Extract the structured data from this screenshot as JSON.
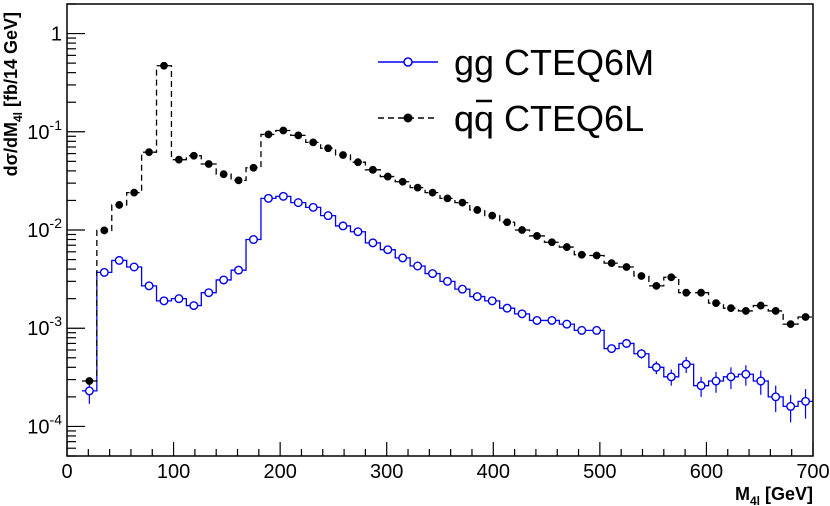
{
  "chart_data": {
    "type": "line",
    "title": "",
    "xlabel": "M_4l [GeV]",
    "ylabel": "dσ/dM_4l [fb/14 GeV]",
    "xlim": [
      0,
      700
    ],
    "ylim": [
      5e-05,
      2
    ],
    "yscale": "log",
    "bin_width": 14,
    "x_ticks": [
      0,
      100,
      200,
      300,
      400,
      500,
      600,
      700
    ],
    "x_tick_labels": [
      "0",
      "100",
      "200",
      "300",
      "400",
      "500",
      "600",
      "700"
    ],
    "y_ticks": [
      0.0001,
      0.001,
      0.01,
      0.1,
      1
    ],
    "legend_position": "top-right",
    "series": [
      {
        "name": "gg CTEQ6M",
        "legend_main": "gg CTEQ6M",
        "color": "#0000ee",
        "marker": "open-circle",
        "line": "solid",
        "x": [
          21,
          35,
          49,
          63,
          77,
          91,
          105,
          119,
          133,
          147,
          161,
          175,
          189,
          203,
          217,
          231,
          245,
          259,
          273,
          287,
          301,
          315,
          329,
          343,
          357,
          371,
          385,
          399,
          413,
          427,
          441,
          455,
          469,
          483,
          497,
          511,
          525,
          539,
          553,
          567,
          581,
          595,
          609,
          623,
          637,
          651,
          665,
          679,
          693
        ],
        "values": [
          0.00023,
          0.0037,
          0.0049,
          0.0042,
          0.0027,
          0.0019,
          0.002,
          0.0017,
          0.0023,
          0.0031,
          0.0039,
          0.008,
          0.021,
          0.022,
          0.019,
          0.017,
          0.014,
          0.011,
          0.0096,
          0.0074,
          0.0063,
          0.0052,
          0.0043,
          0.0036,
          0.003,
          0.0025,
          0.0021,
          0.0019,
          0.0016,
          0.0014,
          0.0012,
          0.0012,
          0.0011,
          0.00095,
          0.00095,
          0.00062,
          0.0007,
          0.00055,
          0.0004,
          0.00032,
          0.00043,
          0.00026,
          0.00029,
          0.00032,
          0.00034,
          0.00029,
          0.0002,
          0.00016,
          0.00018
        ],
        "errors": [
          6e-05,
          0.0002,
          0.0002,
          0.0002,
          0.00015,
          0.0001,
          0.0001,
          0.0001,
          0.0001,
          0.00015,
          0.0002,
          0.0003,
          0.0006,
          0.0006,
          0.0005,
          0.0005,
          0.0004,
          0.0003,
          0.0003,
          0.0002,
          0.0002,
          0.00015,
          0.00012,
          0.0001,
          0.0001,
          8e-05,
          8e-05,
          7e-05,
          6e-05,
          6e-05,
          6e-05,
          6e-05,
          6e-05,
          6e-05,
          7e-05,
          6e-05,
          7e-05,
          6e-05,
          6e-05,
          6e-05,
          8e-05,
          6e-05,
          7e-05,
          8e-05,
          8e-05,
          8e-05,
          6e-05,
          5e-05,
          6e-05
        ]
      },
      {
        "name": "qq̄ CTEQ6L",
        "legend_main": "qq CTEQ6L",
        "legend_bar_char": "q",
        "color": "#000000",
        "marker": "filled-circle",
        "line": "dashed",
        "x": [
          21,
          35,
          49,
          63,
          77,
          91,
          105,
          119,
          133,
          147,
          161,
          175,
          189,
          203,
          217,
          231,
          245,
          259,
          273,
          287,
          301,
          315,
          329,
          343,
          357,
          371,
          385,
          399,
          413,
          427,
          441,
          455,
          469,
          483,
          497,
          511,
          525,
          539,
          553,
          567,
          581,
          595,
          609,
          623,
          637,
          651,
          665,
          679,
          693
        ],
        "values": [
          0.00029,
          0.0099,
          0.018,
          0.024,
          0.062,
          0.47,
          0.052,
          0.057,
          0.047,
          0.037,
          0.032,
          0.043,
          0.094,
          0.103,
          0.092,
          0.078,
          0.068,
          0.058,
          0.049,
          0.041,
          0.035,
          0.031,
          0.027,
          0.024,
          0.021,
          0.019,
          0.016,
          0.014,
          0.012,
          0.01,
          0.0087,
          0.0075,
          0.0067,
          0.0056,
          0.0055,
          0.0046,
          0.0042,
          0.0034,
          0.0027,
          0.0033,
          0.0023,
          0.0023,
          0.0018,
          0.0016,
          0.0015,
          0.0017,
          0.0015,
          0.0011,
          0.0013
        ]
      }
    ]
  }
}
